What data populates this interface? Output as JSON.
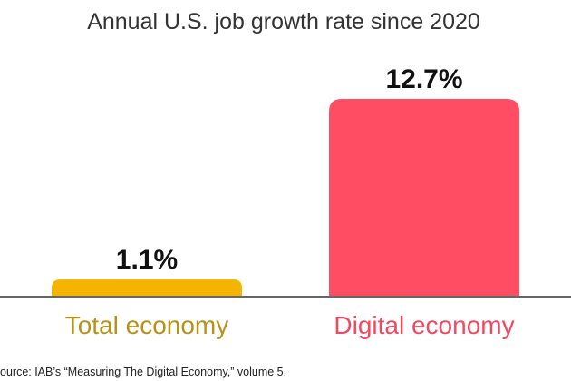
{
  "source_note": "ource: IAB’s “Measuring The Digital Economy,” volume 5.",
  "chart_data": {
    "type": "bar",
    "title": "Annual U.S. job growth rate since 2020",
    "categories": [
      "Total economy",
      "Digital economy"
    ],
    "values": [
      1.1,
      12.7
    ],
    "value_labels": [
      "1.1%",
      "12.7%"
    ],
    "unit": "%",
    "ylim": [
      0,
      12.7
    ],
    "grid": false,
    "legend": "none",
    "colors": [
      "#F5B400",
      "#FF4D64"
    ],
    "label_colors": [
      "#B89118",
      "#F04A62"
    ],
    "baseline_color": "#666666"
  }
}
